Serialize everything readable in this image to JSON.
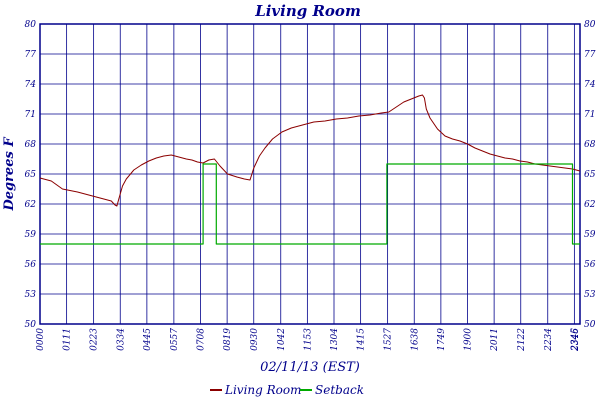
{
  "chart_data": {
    "type": "line",
    "title": "Living Room",
    "xlabel": "02/11/13 (EST)",
    "ylabel": "Degrees F",
    "ylim": [
      50,
      80
    ],
    "xlim": [
      "00:00",
      "24:00"
    ],
    "y_ticks": [
      "50",
      "53",
      "56",
      "59",
      "62",
      "65",
      "68",
      "71",
      "74",
      "77",
      "80"
    ],
    "x_ticks": [
      "00:00",
      "01:11",
      "02:23",
      "03:34",
      "04:45",
      "05:57",
      "07:08",
      "08:19",
      "09:30",
      "10:42",
      "11:53",
      "13:04",
      "14:15",
      "15:27",
      "16:38",
      "17:49",
      "19:00",
      "20:11",
      "21:22",
      "22:34",
      "23:45",
      "23:46"
    ],
    "grid": true,
    "legend_position": "bottom",
    "series": [
      {
        "name": "Living Room",
        "color": "#8b0000",
        "x": [
          "00:00",
          "00:30",
          "01:00",
          "01:40",
          "02:20",
          "02:50",
          "03:10",
          "03:20",
          "03:25",
          "03:30",
          "03:40",
          "03:50",
          "04:10",
          "04:30",
          "04:50",
          "05:10",
          "05:30",
          "05:50",
          "06:10",
          "06:30",
          "06:45",
          "07:00",
          "07:15",
          "07:30",
          "07:45",
          "08:00",
          "08:20",
          "08:45",
          "09:05",
          "09:20",
          "09:30",
          "09:45",
          "10:00",
          "10:20",
          "10:45",
          "11:10",
          "11:40",
          "12:10",
          "12:40",
          "13:10",
          "13:40",
          "14:10",
          "14:40",
          "15:10",
          "15:30",
          "15:50",
          "16:10",
          "16:30",
          "16:50",
          "17:00",
          "17:05",
          "17:10",
          "17:20",
          "17:40",
          "18:00",
          "18:20",
          "18:40",
          "19:00",
          "19:20",
          "19:40",
          "20:00",
          "20:20",
          "20:40",
          "21:00",
          "21:20",
          "21:40",
          "22:00",
          "22:20",
          "22:40",
          "23:00",
          "23:20",
          "23:40",
          "24:00"
        ],
        "y": [
          64.6,
          64.3,
          63.5,
          63.2,
          62.8,
          62.5,
          62.3,
          61.9,
          61.8,
          62.5,
          63.8,
          64.5,
          65.4,
          65.9,
          66.3,
          66.6,
          66.8,
          66.9,
          66.7,
          66.5,
          66.4,
          66.2,
          66.1,
          66.4,
          66.5,
          65.8,
          65.0,
          64.7,
          64.5,
          64.4,
          65.6,
          66.8,
          67.6,
          68.5,
          69.2,
          69.6,
          69.9,
          70.2,
          70.3,
          70.5,
          70.6,
          70.8,
          70.9,
          71.1,
          71.2,
          71.7,
          72.2,
          72.5,
          72.8,
          72.9,
          72.6,
          71.5,
          70.6,
          69.5,
          68.8,
          68.5,
          68.3,
          68.0,
          67.6,
          67.3,
          67.0,
          66.8,
          66.6,
          66.5,
          66.3,
          66.2,
          66.0,
          65.9,
          65.8,
          65.7,
          65.6,
          65.5,
          65.3
        ]
      },
      {
        "name": "Setback",
        "color": "#00aa00",
        "x": [
          "00:00",
          "07:15",
          "07:15",
          "07:50",
          "07:50",
          "15:25",
          "15:25",
          "23:40",
          "23:40",
          "24:00"
        ],
        "y": [
          58,
          58,
          66,
          66,
          58,
          58,
          66,
          66,
          58,
          58
        ]
      }
    ]
  }
}
